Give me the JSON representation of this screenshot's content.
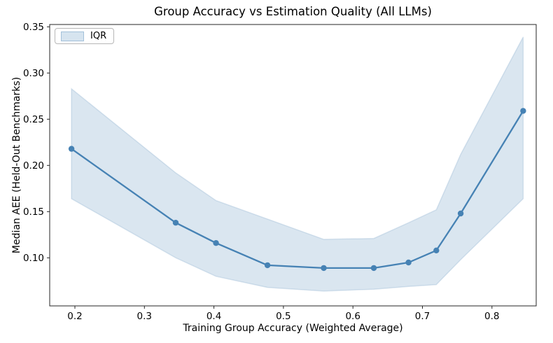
{
  "chart_data": {
    "type": "line",
    "title": "Group Accuracy vs Estimation Quality (All LLMs)",
    "xlabel": "Training Group Accuracy (Weighted Average)",
    "ylabel": "Median AEE (Held-Out Benchmarks)",
    "x_ticks": [
      0.2,
      0.3,
      0.4,
      0.5,
      0.6,
      0.7,
      0.8
    ],
    "y_ticks": [
      0.1,
      0.15,
      0.2,
      0.25,
      0.3,
      0.35
    ],
    "xlim": [
      0.1637,
      0.8637
    ],
    "ylim": [
      0.048,
      0.3525
    ],
    "grid": false,
    "accent_color": "#4682b4",
    "band_opacity": 0.2,
    "legend": {
      "position": "upper-left",
      "entries": [
        {
          "label": "IQR",
          "type": "band"
        }
      ]
    },
    "series": [
      {
        "name": "median",
        "color": "#4682b4",
        "marker": "circle",
        "x": [
          0.195,
          0.345,
          0.403,
          0.477,
          0.558,
          0.63,
          0.68,
          0.72,
          0.755,
          0.845
        ],
        "y": [
          0.218,
          0.138,
          0.116,
          0.092,
          0.089,
          0.089,
          0.095,
          0.108,
          0.148,
          0.259
        ]
      }
    ],
    "band": {
      "name": "IQR",
      "color": "#4682b4",
      "x": [
        0.195,
        0.345,
        0.403,
        0.477,
        0.558,
        0.63,
        0.68,
        0.72,
        0.755,
        0.845
      ],
      "lower": [
        0.164,
        0.1,
        0.08,
        0.068,
        0.064,
        0.066,
        0.069,
        0.071,
        0.098,
        0.164
      ],
      "upper": [
        0.283,
        0.192,
        0.162,
        0.142,
        0.12,
        0.121,
        0.138,
        0.152,
        0.212,
        0.339
      ]
    }
  }
}
